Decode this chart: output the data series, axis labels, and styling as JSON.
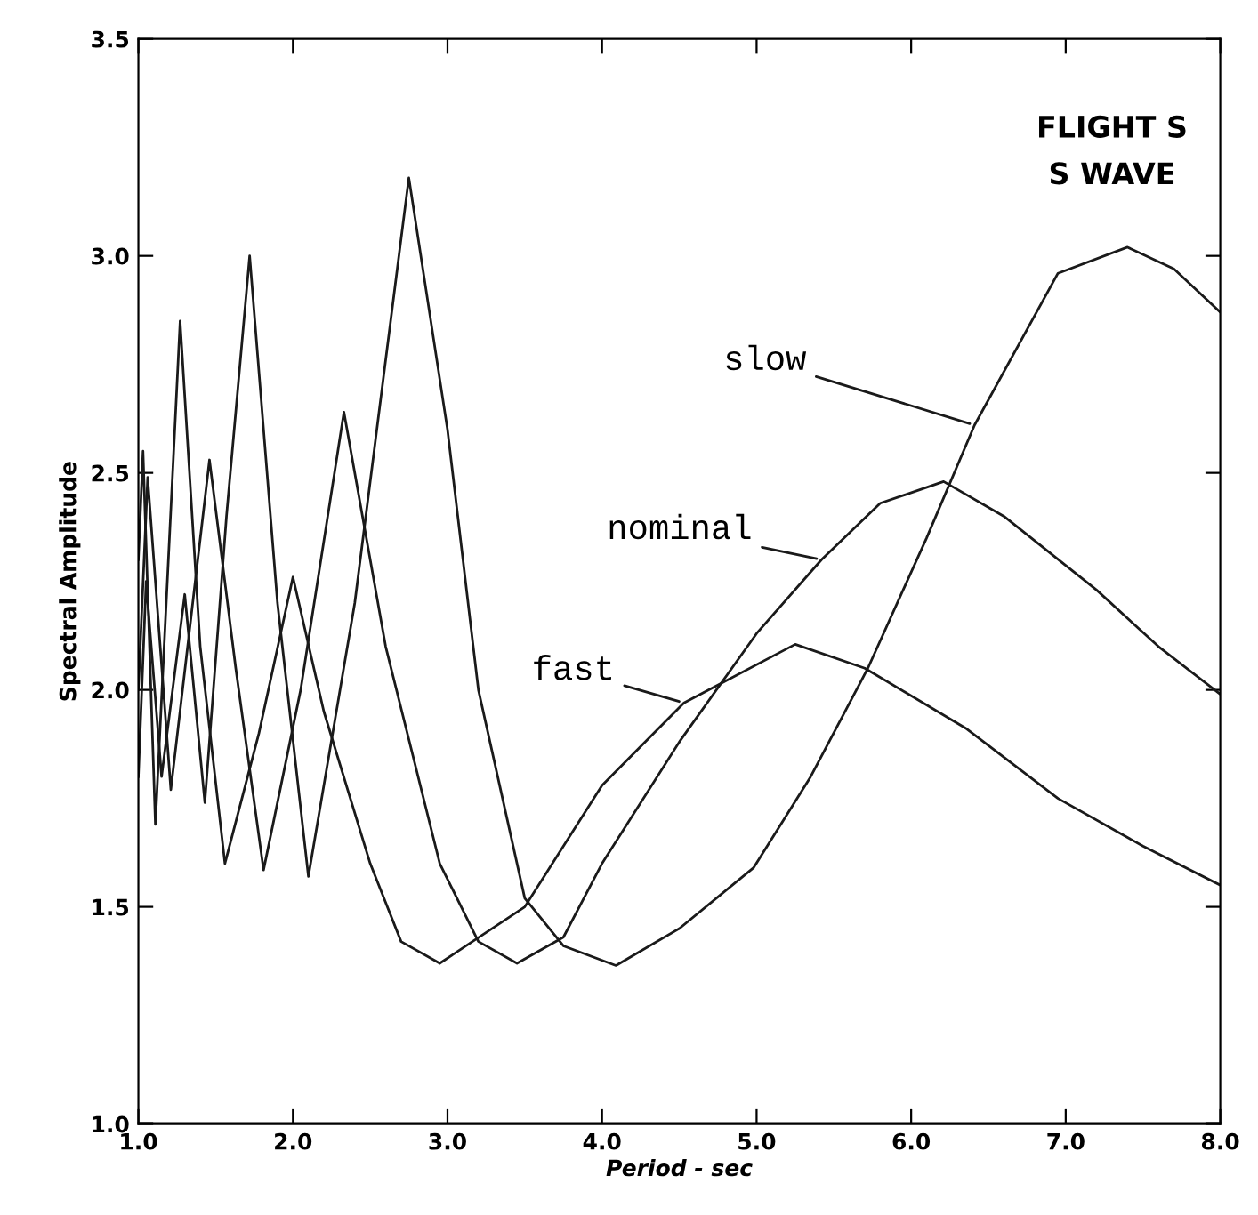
{
  "chart_data": {
    "type": "line",
    "title": "FLIGHT S\nS WAVE",
    "xlabel": "Period - sec",
    "ylabel": "Spectral Amplitude",
    "series": [
      {
        "color": "#1a1a1a",
        "x": [
          1.0,
          1.03,
          1.11,
          1.27,
          1.4,
          1.56,
          1.78,
          2.0,
          2.2,
          2.5,
          2.7,
          2.95,
          3.5,
          4.0,
          4.53,
          5.25,
          5.7,
          6.36,
          6.95,
          7.5,
          8.0
        ],
        "values": [
          2.3,
          2.55,
          1.69,
          2.85,
          2.1,
          1.6,
          1.9,
          2.26,
          1.95,
          1.6,
          1.42,
          1.37,
          1.5,
          1.78,
          1.97,
          2.105,
          2.05,
          1.91,
          1.75,
          1.64,
          1.55
        ]
      },
      {
        "color": "#1a1a1a",
        "x": [
          1.0,
          1.06,
          1.21,
          1.46,
          1.63,
          1.81,
          2.05,
          2.33,
          2.6,
          2.95,
          3.2,
          3.45,
          3.75,
          4.0,
          4.5,
          5.0,
          5.42,
          5.8,
          6.21,
          6.6,
          7.2,
          7.6,
          8.0
        ],
        "values": [
          2.0,
          2.49,
          1.77,
          2.53,
          2.05,
          1.585,
          2.0,
          2.64,
          2.1,
          1.6,
          1.42,
          1.37,
          1.43,
          1.6,
          1.88,
          2.13,
          2.3,
          2.43,
          2.48,
          2.4,
          2.23,
          2.1,
          1.99
        ]
      },
      {
        "color": "#1a1a1a",
        "x": [
          1.0,
          1.05,
          1.15,
          1.3,
          1.43,
          1.57,
          1.72,
          1.9,
          2.1,
          2.4,
          2.75,
          3.0,
          3.2,
          3.5,
          3.75,
          4.09,
          4.5,
          4.98,
          5.35,
          5.72,
          6.1,
          6.41,
          6.95,
          7.4,
          7.7,
          8.0
        ],
        "values": [
          1.8,
          2.25,
          1.8,
          2.22,
          1.74,
          2.4,
          3.0,
          2.2,
          1.57,
          2.2,
          3.18,
          2.6,
          2.0,
          1.52,
          1.41,
          1.365,
          1.45,
          1.59,
          1.8,
          2.05,
          2.35,
          2.61,
          2.96,
          3.02,
          2.97,
          2.87
        ]
      }
    ],
    "annotations": [
      {
        "text": "fast",
        "x": 4.53,
        "y": 1.97
      },
      {
        "text": "nominal",
        "x": 5.42,
        "y": 2.3
      },
      {
        "text": "slow",
        "x": 6.41,
        "y": 2.61
      }
    ],
    "xlim": [
      1.0,
      8.0
    ],
    "ylim": [
      1.0,
      3.5
    ],
    "xticks": [
      {
        "value": 1.0,
        "label": "1.0"
      },
      {
        "value": 2.0,
        "label": "2.0"
      },
      {
        "value": 3.0,
        "label": "3.0"
      },
      {
        "value": 4.0,
        "label": "4.0"
      },
      {
        "value": 5.0,
        "label": "5.0"
      },
      {
        "value": 6.0,
        "label": "6.0"
      },
      {
        "value": 7.0,
        "label": "7.0"
      },
      {
        "value": 8.0,
        "label": "8.0"
      }
    ],
    "yticks": [
      {
        "value": 1.0,
        "label": "1.0"
      },
      {
        "value": 1.5,
        "label": "1.5"
      },
      {
        "value": 2.0,
        "label": "2.0"
      },
      {
        "value": 2.5,
        "label": "2.5"
      },
      {
        "value": 3.0,
        "label": "3.0"
      },
      {
        "value": 3.5,
        "label": "3.5"
      }
    ],
    "grid": false,
    "marker": "none",
    "line_style": "solid"
  }
}
